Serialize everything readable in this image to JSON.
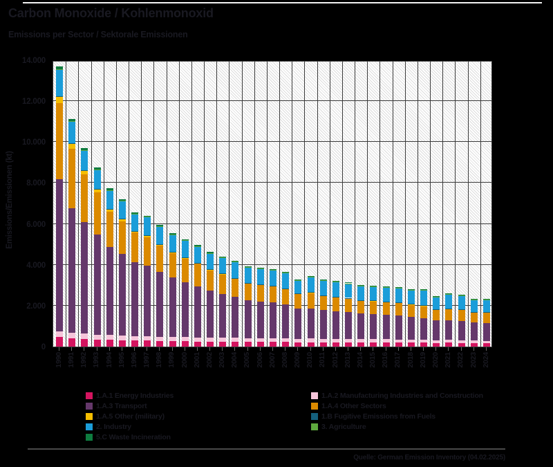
{
  "header": {
    "title": "Carbon Monoxide / Kohlenmonoxid",
    "subtitle": "Emissions per Sector / Sektorale Emissionen"
  },
  "footer": {
    "source": "Quelle: German Emission Inventory (04.02.2025)"
  },
  "colors": {
    "background": "#000000",
    "text": "#191921",
    "grid": "#3a3a3a",
    "plot_stripe": "#dcdcdc",
    "plot_background": "#ffffff",
    "top_line": "#f2f2f2",
    "footer_line": "#4a4a4a"
  },
  "chart_data": {
    "type": "bar",
    "stacked": true,
    "title": "Carbon Monoxide / Kohlenmonoxid",
    "subtitle": "Emissions per Sector / Sektorale Emissionen",
    "xlabel": "",
    "ylabel": "Emissions/Emissionen (kt)",
    "ylim": [
      0,
      14000
    ],
    "grid": true,
    "legend_position": "bottom",
    "yticks": [
      {
        "value": 0,
        "label": "0"
      },
      {
        "value": 2000,
        "label": "2.000"
      },
      {
        "value": 4000,
        "label": "4.000"
      },
      {
        "value": 6000,
        "label": "6.000"
      },
      {
        "value": 8000,
        "label": "8.000"
      },
      {
        "value": 10000,
        "label": "10.000"
      },
      {
        "value": 12000,
        "label": "12.000"
      },
      {
        "value": 14000,
        "label": "14.000"
      }
    ],
    "categories": [
      "1990",
      "1991",
      "1992",
      "1993",
      "1994",
      "1995",
      "1996",
      "1997",
      "1998",
      "1999",
      "2000",
      "2001",
      "2002",
      "2003",
      "2004",
      "2005",
      "2006",
      "2007",
      "2008",
      "2009",
      "2010",
      "2011",
      "2012",
      "2013",
      "2014",
      "2015",
      "2016",
      "2017",
      "2018",
      "2019",
      "2020",
      "2021",
      "2022",
      "2023",
      "2024"
    ],
    "series": [
      {
        "name": "1.A.1 Energy Industries",
        "color": "#d4145f",
        "values": [
          470,
          420,
          380,
          350,
          330,
          310,
          300,
          290,
          280,
          270,
          260,
          250,
          245,
          245,
          240,
          230,
          230,
          230,
          225,
          215,
          220,
          215,
          215,
          215,
          210,
          210,
          210,
          205,
          200,
          200,
          185,
          190,
          185,
          170,
          165
        ]
      },
      {
        "name": "1.A.2 Manufacturing Industries and Construction",
        "color": "#f6c5da",
        "values": [
          270,
          260,
          250,
          240,
          230,
          225,
          215,
          215,
          210,
          205,
          200,
          195,
          190,
          190,
          185,
          180,
          180,
          180,
          175,
          160,
          170,
          165,
          160,
          160,
          155,
          155,
          150,
          150,
          148,
          145,
          135,
          140,
          135,
          125,
          120
        ]
      },
      {
        "name": "1.A.3 Transport",
        "color": "#65386b",
        "values": [
          7440,
          6100,
          5450,
          4900,
          4300,
          4000,
          3600,
          3450,
          3150,
          2900,
          2700,
          2500,
          2300,
          2150,
          2000,
          1850,
          1800,
          1750,
          1650,
          1500,
          1480,
          1400,
          1350,
          1300,
          1250,
          1220,
          1190,
          1160,
          1100,
          1050,
          950,
          960,
          940,
          900,
          880
        ]
      },
      {
        "name": "1.A.4 Other Sectors",
        "color": "#db8a00",
        "values": [
          3720,
          2900,
          2350,
          2050,
          1750,
          1600,
          1450,
          1400,
          1300,
          1200,
          1150,
          1100,
          1000,
          950,
          900,
          820,
          800,
          780,
          760,
          700,
          760,
          700,
          690,
          680,
          640,
          640,
          630,
          620,
          610,
          600,
          540,
          560,
          540,
          490,
          500
        ]
      },
      {
        "name": "1.A.5 Other (military)",
        "color": "#f6be00",
        "values": [
          340,
          260,
          200,
          160,
          120,
          100,
          80,
          70,
          60,
          50,
          45,
          40,
          35,
          30,
          30,
          25,
          25,
          25,
          25,
          20,
          20,
          20,
          20,
          20,
          18,
          18,
          17,
          16,
          15,
          15,
          14,
          14,
          13,
          12,
          12
        ]
      },
      {
        "name": "1.B Fugitive Emissions from Fuels",
        "color": "#14607d",
        "values": [
          10,
          10,
          10,
          10,
          10,
          10,
          10,
          10,
          10,
          10,
          10,
          10,
          10,
          10,
          10,
          10,
          10,
          10,
          10,
          10,
          10,
          10,
          10,
          10,
          10,
          10,
          10,
          10,
          10,
          10,
          10,
          10,
          10,
          10,
          10
        ]
      },
      {
        "name": "2. Industry",
        "color": "#1b9dd9",
        "values": [
          1290,
          1050,
          960,
          940,
          900,
          870,
          840,
          900,
          880,
          850,
          830,
          810,
          790,
          780,
          770,
          760,
          770,
          780,
          770,
          640,
          740,
          720,
          710,
          700,
          680,
          690,
          690,
          690,
          680,
          750,
          580,
          690,
          680,
          600,
          610
        ]
      },
      {
        "name": "3. Agriculture",
        "color": "#5ea83e",
        "values": [
          10,
          10,
          10,
          10,
          10,
          10,
          10,
          10,
          10,
          10,
          10,
          10,
          10,
          10,
          10,
          10,
          10,
          10,
          10,
          10,
          10,
          10,
          10,
          10,
          10,
          10,
          10,
          10,
          10,
          10,
          10,
          10,
          10,
          10,
          10
        ]
      },
      {
        "name": "5.C Waste Incineration",
        "color": "#0e7c40",
        "values": [
          130,
          110,
          100,
          90,
          80,
          70,
          65,
          60,
          55,
          50,
          50,
          45,
          45,
          40,
          40,
          40,
          40,
          40,
          40,
          38,
          40,
          38,
          38,
          38,
          36,
          36,
          36,
          35,
          35,
          35,
          33,
          33,
          32,
          30,
          30
        ]
      }
    ]
  }
}
